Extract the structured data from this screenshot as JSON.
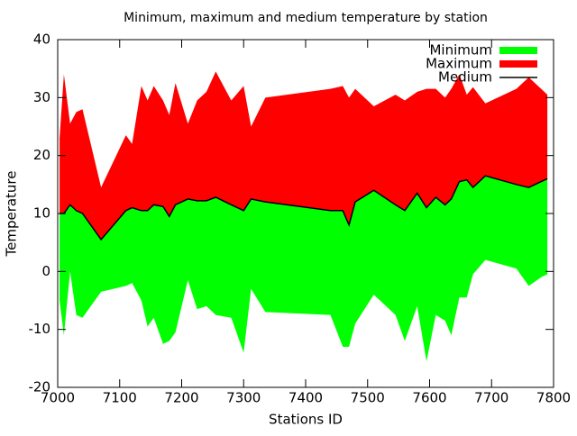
{
  "chart_data": {
    "type": "band",
    "title": "Minimum, maximum and medium temperature by station",
    "x_label": "Stations ID",
    "y_label": "Temperature",
    "x": [
      7003,
      7010,
      7020,
      7030,
      7040,
      7070,
      7110,
      7120,
      7135,
      7145,
      7155,
      7170,
      7180,
      7190,
      7210,
      7225,
      7240,
      7255,
      7280,
      7300,
      7312,
      7335,
      7440,
      7460,
      7470,
      7480,
      7510,
      7545,
      7560,
      7580,
      7595,
      7610,
      7625,
      7635,
      7648,
      7660,
      7670,
      7690,
      7740,
      7760,
      7780,
      7790
    ],
    "series": [
      {
        "name": "Minimum",
        "color": "#00ff00",
        "values": [
          -5,
          -11,
          0,
          -7.5,
          -8,
          -3.5,
          -2.5,
          -2,
          -5,
          -9.5,
          -8,
          -12.5,
          -12,
          -10.5,
          -1.5,
          -6.5,
          -6,
          -7.5,
          -8,
          -14,
          -3,
          -7,
          -7.5,
          -13,
          -13,
          -9,
          -4,
          -7.5,
          -12,
          -6,
          -15.5,
          -7.5,
          -8.5,
          -11,
          -4.5,
          -4.5,
          -0.5,
          2,
          0.5,
          -2.5,
          -1,
          -0.5
        ]
      },
      {
        "name": "Maximum",
        "color": "#ff0000",
        "values": [
          23,
          34,
          25.5,
          27.5,
          28,
          14.5,
          23.5,
          22,
          32,
          29.5,
          32,
          29.5,
          27,
          32.5,
          25.5,
          29.5,
          31,
          34.5,
          29.5,
          32,
          25,
          30,
          31.5,
          32,
          30,
          31.5,
          28.5,
          30.5,
          29.5,
          31,
          31.5,
          31.5,
          30,
          31.5,
          34,
          30.5,
          31.8,
          29,
          31.5,
          33.5,
          31.5,
          30.5
        ]
      },
      {
        "name": "Medium",
        "color": "#000000",
        "values": [
          10,
          10,
          11.5,
          10.5,
          10,
          5.5,
          10.5,
          11,
          10.5,
          10.5,
          11.5,
          11.2,
          9.5,
          11.5,
          12.5,
          12.2,
          12.2,
          12.8,
          11.5,
          10.5,
          12.5,
          12,
          10.5,
          10.5,
          8,
          12,
          14,
          11.5,
          10.5,
          13.5,
          11,
          12.8,
          11.5,
          12.5,
          15.5,
          15.8,
          14.5,
          16.5,
          15,
          14.5,
          15.5,
          16
        ]
      }
    ],
    "xlim": [
      7000,
      7800
    ],
    "xticks": [
      7000,
      7100,
      7200,
      7300,
      7400,
      7500,
      7600,
      7700,
      7800
    ],
    "ylim": [
      -20,
      40
    ],
    "yticks": [
      -20,
      -10,
      0,
      10,
      20,
      30,
      40
    ],
    "legend": "top-right"
  }
}
